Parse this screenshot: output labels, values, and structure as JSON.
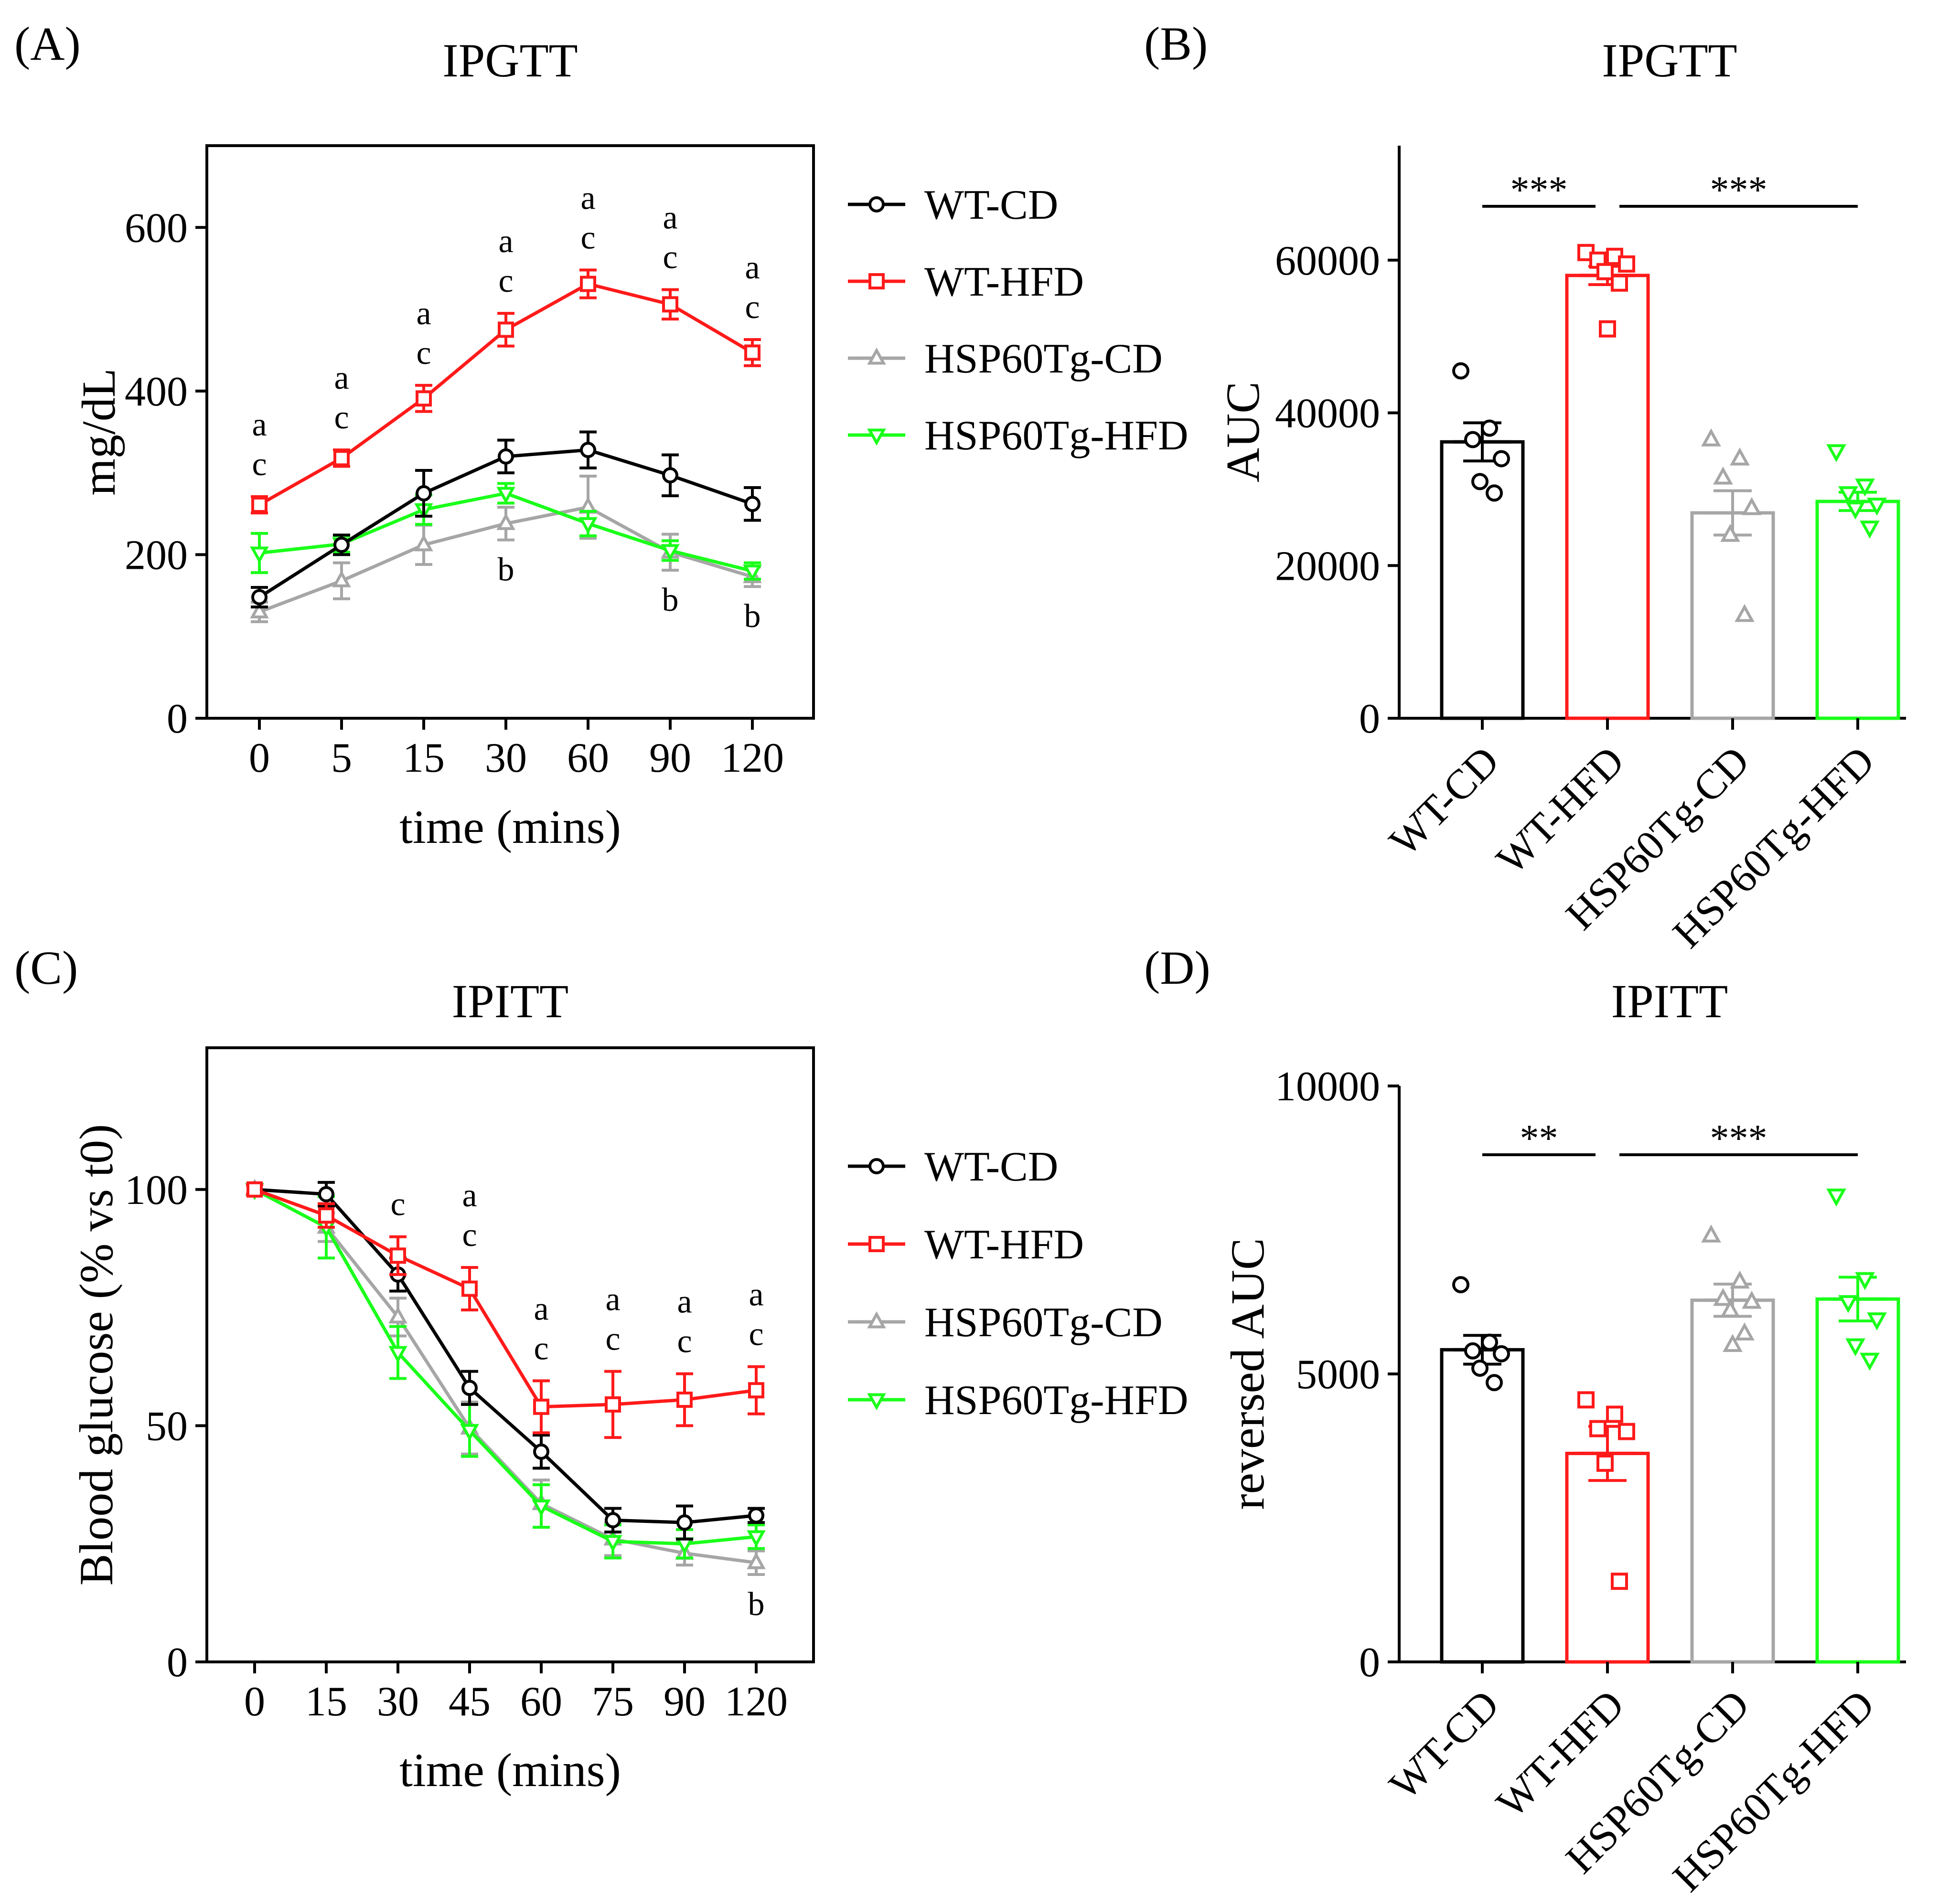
{
  "colors": {
    "WT-CD": "#000000",
    "WT-HFD": "#ff1a1a",
    "HSP60Tg-CD": "#a6a6a6",
    "HSP60Tg-HFD": "#1aff1a"
  },
  "chart_data": [
    {
      "panel_label": "(A)",
      "type": "line",
      "title": "IPGTT",
      "xlabel": "time (mins)",
      "ylabel": "mg/dL",
      "categories": [
        "0",
        "5",
        "15",
        "30",
        "60",
        "90",
        "120"
      ],
      "yticks": [
        "0",
        "200",
        "400",
        "600"
      ],
      "ylim": [
        0,
        700
      ],
      "series": [
        {
          "name": "WT-CD",
          "marker": "circle",
          "values": [
            148,
            212,
            275,
            320,
            328,
            297,
            262
          ],
          "errors": [
            12,
            12,
            28,
            20,
            22,
            25,
            20
          ]
        },
        {
          "name": "WT-HFD",
          "marker": "square",
          "values": [
            261,
            318,
            391,
            475,
            531,
            506,
            447
          ],
          "errors": [
            10,
            10,
            16,
            20,
            17,
            18,
            16
          ]
        },
        {
          "name": "HSP60Tg-CD",
          "marker": "triangle-up",
          "values": [
            130,
            168,
            212,
            238,
            258,
            203,
            173
          ],
          "errors": [
            12,
            22,
            24,
            20,
            38,
            22,
            12
          ]
        },
        {
          "name": "HSP60Tg-HFD",
          "marker": "triangle-down",
          "values": [
            202,
            213,
            255,
            275,
            238,
            205,
            180
          ],
          "errors": [
            24,
            10,
            18,
            12,
            15,
            12,
            10
          ]
        }
      ],
      "annotations": [
        {
          "x": "0",
          "lines": [
            "a",
            "c"
          ],
          "pos": "above"
        },
        {
          "x": "5",
          "lines": [
            "a",
            "c"
          ],
          "pos": "above"
        },
        {
          "x": "15",
          "lines": [
            "a",
            "c"
          ],
          "pos": "above"
        },
        {
          "x": "30",
          "lines": [
            "a",
            "c"
          ],
          "pos": "above"
        },
        {
          "x": "60",
          "lines": [
            "a",
            "c"
          ],
          "pos": "above"
        },
        {
          "x": "90",
          "lines": [
            "a",
            "c"
          ],
          "pos": "above"
        },
        {
          "x": "120",
          "lines": [
            "a",
            "c"
          ],
          "pos": "above"
        },
        {
          "x": "30",
          "lines": [
            "b"
          ],
          "pos": "below"
        },
        {
          "x": "90",
          "lines": [
            "b"
          ],
          "pos": "below"
        },
        {
          "x": "120",
          "lines": [
            "b"
          ],
          "pos": "below"
        }
      ],
      "legend": [
        "WT-CD",
        "WT-HFD",
        "HSP60Tg-CD",
        "HSP60Tg-HFD"
      ]
    },
    {
      "panel_label": "(B)",
      "type": "bar",
      "title": "IPGTT",
      "xlabel": "",
      "ylabel": "AUC",
      "categories": [
        "WT-CD",
        "WT-HFD",
        "HSP60Tg-CD",
        "HSP60Tg-HFD"
      ],
      "yticks": [
        "0",
        "20000",
        "40000",
        "60000"
      ],
      "ylim": [
        0,
        75000
      ],
      "values": [
        36200,
        58000,
        26900,
        28400
      ],
      "errors": [
        2500,
        1200,
        2900,
        1200
      ],
      "points": [
        [
          45500,
          38000,
          36500,
          34000,
          31000,
          29500
        ],
        [
          61000,
          60500,
          60000,
          59500,
          58500,
          57000,
          51000
        ],
        [
          36500,
          34000,
          31500,
          27500,
          24000,
          13500
        ],
        [
          35000,
          30500,
          29500,
          28000,
          27500,
          25000
        ]
      ],
      "significance": [
        {
          "from": "WT-CD",
          "to": "WT-HFD",
          "label": "***"
        },
        {
          "from": "WT-HFD",
          "to": "HSP60Tg-HFD",
          "label": "***"
        }
      ]
    },
    {
      "panel_label": "(C)",
      "type": "line",
      "title": "IPITT",
      "xlabel": "time (mins)",
      "ylabel": "Blood glucose (% vs t0)",
      "categories": [
        "0",
        "15",
        "30",
        "45",
        "60",
        "75",
        "90",
        "120"
      ],
      "yticks": [
        "0",
        "50",
        "100"
      ],
      "ylim": [
        0,
        130
      ],
      "series": [
        {
          "name": "WT-CD",
          "marker": "circle",
          "values": [
            100,
            99,
            82,
            58,
            44.5,
            30,
            29.5,
            31
          ],
          "errors": [
            1,
            2.5,
            3.5,
            3.5,
            3.5,
            2.5,
            3.5,
            1.5
          ]
        },
        {
          "name": "WT-HFD",
          "marker": "square",
          "values": [
            100,
            94.5,
            86,
            79,
            54,
            54.5,
            55.5,
            57.5
          ],
          "errors": [
            1,
            2.5,
            4,
            4.5,
            5.5,
            7,
            5.5,
            5
          ]
        },
        {
          "name": "HSP60Tg-CD",
          "marker": "triangle-up",
          "values": [
            100,
            92,
            73,
            49.5,
            33.5,
            26,
            23,
            21
          ],
          "errors": [
            1,
            3,
            4,
            5.5,
            5,
            3.5,
            2.5,
            2.5
          ]
        },
        {
          "name": "HSP60Tg-HFD",
          "marker": "triangle-down",
          "values": [
            100,
            92,
            65.5,
            49,
            33,
            25.5,
            25,
            26.5
          ],
          "errors": [
            1,
            6.5,
            5.5,
            5.5,
            4.5,
            3.5,
            3,
            2.5
          ]
        }
      ],
      "annotations": [
        {
          "x": "30",
          "lines": [
            "c"
          ],
          "pos": "above"
        },
        {
          "x": "45",
          "lines": [
            "a",
            "c"
          ],
          "pos": "above"
        },
        {
          "x": "60",
          "lines": [
            "a",
            "c"
          ],
          "pos": "above"
        },
        {
          "x": "75",
          "lines": [
            "a",
            "c"
          ],
          "pos": "above"
        },
        {
          "x": "90",
          "lines": [
            "a",
            "c"
          ],
          "pos": "above"
        },
        {
          "x": "120",
          "lines": [
            "a",
            "c"
          ],
          "pos": "above"
        },
        {
          "x": "120",
          "lines": [
            "b"
          ],
          "pos": "below"
        }
      ],
      "legend": [
        "WT-CD",
        "WT-HFD",
        "HSP60Tg-CD",
        "HSP60Tg-HFD"
      ]
    },
    {
      "panel_label": "(D)",
      "type": "bar",
      "title": "IPITT",
      "xlabel": "",
      "ylabel": "reversed AUC",
      "categories": [
        "WT-CD",
        "WT-HFD",
        "HSP60Tg-CD",
        "HSP60Tg-HFD"
      ],
      "yticks": [
        "0",
        "5000",
        "10000"
      ],
      "ylim": [
        0,
        10000
      ],
      "values": [
        5420,
        3620,
        6280,
        6300
      ],
      "errors": [
        250,
        470,
        280,
        380
      ],
      "points": [
        [
          6550,
          5550,
          5400,
          5350,
          5100,
          4850
        ],
        [
          4550,
          4300,
          4050,
          4000,
          3450,
          1400
        ],
        [
          7400,
          6600,
          6300,
          6250,
          6100,
          5700,
          5500
        ],
        [
          8100,
          6650,
          6250,
          5950,
          5500,
          5250
        ]
      ],
      "significance": [
        {
          "from": "WT-CD",
          "to": "WT-HFD",
          "label": "**"
        },
        {
          "from": "WT-HFD",
          "to": "HSP60Tg-HFD",
          "label": "***"
        }
      ]
    }
  ]
}
